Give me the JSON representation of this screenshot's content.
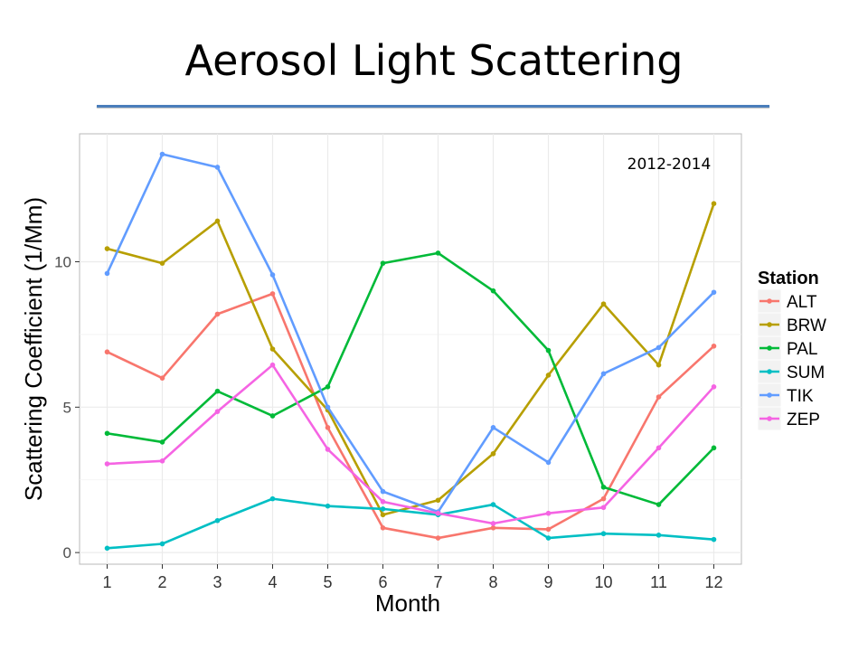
{
  "slide": {
    "title": "Aerosol Light Scattering"
  },
  "chart_data": {
    "type": "line",
    "title": "",
    "annotation": "2012-2014",
    "xlabel": "Month",
    "ylabel": "Scattering Coefficient (1/Mm)",
    "x": [
      1,
      2,
      3,
      4,
      5,
      6,
      7,
      8,
      9,
      10,
      11,
      12
    ],
    "x_ticks": [
      "1",
      "2",
      "3",
      "4",
      "5",
      "6",
      "7",
      "8",
      "9",
      "10",
      "11",
      "12"
    ],
    "y_ticks": [
      0,
      5,
      10
    ],
    "y_tick_labels": [
      "0",
      "5",
      "10"
    ],
    "ylim": [
      -0.4,
      14.4
    ],
    "xlim": [
      0.5,
      12.5
    ],
    "grid": true,
    "legend": {
      "title": "Station",
      "position": "right"
    },
    "series": [
      {
        "name": "ALT",
        "color": "#F8766D",
        "values": [
          6.9,
          6.0,
          8.2,
          8.9,
          4.3,
          0.85,
          0.5,
          0.85,
          0.8,
          1.85,
          5.35,
          7.1
        ]
      },
      {
        "name": "BRW",
        "color": "#B79F00",
        "values": [
          10.45,
          9.95,
          11.4,
          7.0,
          4.9,
          1.3,
          1.8,
          3.4,
          6.1,
          8.55,
          6.45,
          12.0
        ]
      },
      {
        "name": "PAL",
        "color": "#00BA38",
        "values": [
          4.1,
          3.8,
          5.55,
          4.7,
          5.7,
          9.95,
          10.3,
          9.0,
          6.95,
          2.25,
          1.65,
          3.6
        ]
      },
      {
        "name": "SUM",
        "color": "#00BFC4",
        "values": [
          0.15,
          0.3,
          1.1,
          1.85,
          1.6,
          1.5,
          1.3,
          1.65,
          0.5,
          0.65,
          0.6,
          0.45
        ]
      },
      {
        "name": "TIK",
        "color": "#619CFF",
        "values": [
          9.6,
          13.7,
          13.25,
          9.55,
          5.0,
          2.1,
          1.4,
          4.3,
          3.1,
          6.15,
          7.05,
          8.95
        ]
      },
      {
        "name": "ZEP",
        "color": "#F564E3",
        "values": [
          3.05,
          3.15,
          4.85,
          6.45,
          3.55,
          1.75,
          1.35,
          1.0,
          1.35,
          1.55,
          3.6,
          5.7
        ]
      }
    ]
  }
}
